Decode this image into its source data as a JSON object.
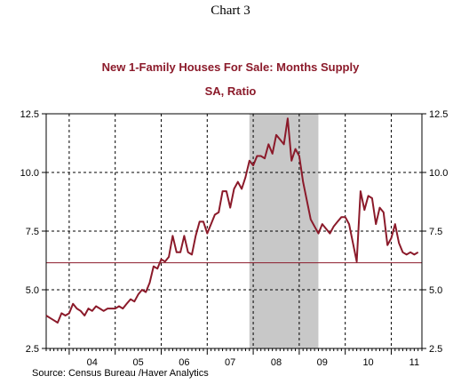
{
  "chart_label": "Chart 3",
  "chart_data": {
    "type": "line",
    "title": "New 1-Family Houses For Sale: Months Supply",
    "subtitle": "SA, Ratio",
    "source": "Source:  Census Bureau /Haver Analytics",
    "xlabel": "",
    "ylabel": "",
    "x_ticks": [
      "04",
      "05",
      "06",
      "07",
      "08",
      "09",
      "10",
      "11"
    ],
    "xlim": [
      "2003-07",
      "2011-09"
    ],
    "y_ticks": [
      "2.5",
      "5.0",
      "7.5",
      "10.0",
      "12.5"
    ],
    "ylim": [
      2.5,
      12.5
    ],
    "grid": "dashed vertical at year starts, dashed horizontal at 7.5 and 10.0",
    "recession": {
      "start": "2007-12",
      "end": "2009-06",
      "color": "#c8c8c8"
    },
    "reference_line": {
      "value": 6.15,
      "color": "#8b1a2a"
    },
    "series": [
      {
        "color": "#8b1a2a",
        "x": [
          "2003-07",
          "2003-08",
          "2003-09",
          "2003-10",
          "2003-11",
          "2003-12",
          "2004-01",
          "2004-02",
          "2004-03",
          "2004-04",
          "2004-05",
          "2004-06",
          "2004-07",
          "2004-08",
          "2004-09",
          "2004-10",
          "2004-11",
          "2004-12",
          "2005-01",
          "2005-02",
          "2005-03",
          "2005-04",
          "2005-05",
          "2005-06",
          "2005-07",
          "2005-08",
          "2005-09",
          "2005-10",
          "2005-11",
          "2005-12",
          "2006-01",
          "2006-02",
          "2006-03",
          "2006-04",
          "2006-05",
          "2006-06",
          "2006-07",
          "2006-08",
          "2006-09",
          "2006-10",
          "2006-11",
          "2006-12",
          "2007-01",
          "2007-02",
          "2007-03",
          "2007-04",
          "2007-05",
          "2007-06",
          "2007-07",
          "2007-08",
          "2007-09",
          "2007-10",
          "2007-11",
          "2007-12",
          "2008-01",
          "2008-02",
          "2008-03",
          "2008-04",
          "2008-05",
          "2008-06",
          "2008-07",
          "2008-08",
          "2008-09",
          "2008-10",
          "2008-11",
          "2008-12",
          "2009-01",
          "2009-02",
          "2009-03",
          "2009-04",
          "2009-05",
          "2009-06",
          "2009-07",
          "2009-08",
          "2009-09",
          "2009-10",
          "2009-11",
          "2009-12",
          "2010-01",
          "2010-02",
          "2010-03",
          "2010-04",
          "2010-05",
          "2010-06",
          "2010-07",
          "2010-08",
          "2010-09",
          "2010-10",
          "2010-11",
          "2010-12",
          "2011-01",
          "2011-02",
          "2011-03",
          "2011-04",
          "2011-05",
          "2011-06",
          "2011-07",
          "2011-08"
        ],
        "values": [
          3.9,
          3.8,
          3.7,
          3.6,
          4.0,
          3.9,
          4.0,
          4.4,
          4.2,
          4.1,
          3.9,
          4.2,
          4.1,
          4.3,
          4.2,
          4.1,
          4.2,
          4.2,
          4.2,
          4.3,
          4.2,
          4.4,
          4.6,
          4.5,
          4.8,
          5.0,
          4.9,
          5.3,
          6.0,
          5.9,
          6.3,
          6.2,
          6.4,
          7.3,
          6.6,
          6.6,
          7.3,
          6.6,
          6.5,
          7.3,
          7.9,
          7.9,
          7.4,
          7.8,
          8.2,
          8.3,
          9.2,
          9.2,
          8.5,
          9.3,
          9.6,
          9.3,
          9.8,
          10.5,
          10.3,
          10.7,
          10.7,
          10.6,
          11.2,
          10.8,
          11.6,
          11.4,
          11.2,
          12.3,
          10.5,
          11.0,
          10.7,
          9.6,
          8.8,
          8.0,
          7.7,
          7.4,
          7.8,
          7.6,
          7.4,
          7.7,
          7.9,
          8.1,
          8.1,
          7.8,
          7.0,
          6.2,
          9.2,
          8.4,
          9.0,
          8.9,
          7.8,
          8.5,
          8.3,
          6.9,
          7.2,
          7.8,
          7.0,
          6.6,
          6.5,
          6.6,
          6.5,
          6.6
        ]
      }
    ]
  }
}
